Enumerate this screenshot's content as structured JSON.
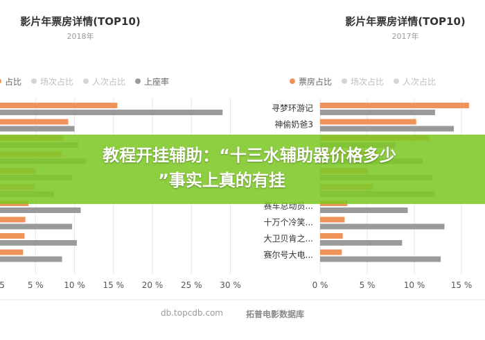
{
  "colors": {
    "box_office": "#f0935a",
    "screenings": "#b5b5b5",
    "admissions": "#c8c8c8",
    "occupancy": "#9a9a9a",
    "banner": "#7ec828"
  },
  "banner": {
    "line1": "教程开挂辅助：“十三水辅助器价格多少",
    "line2": "”事实上真的有挂"
  },
  "footer": {
    "source": "db.topcdb.com",
    "brand": "拓普电影数据库"
  },
  "chart_data": [
    {
      "type": "bar",
      "orientation": "horizontal",
      "title": "影片年票房详情(TOP10)",
      "subtitle": "2018年",
      "legend": [
        "占比",
        "场次占比",
        "人次占比",
        "上座率"
      ],
      "legend_placement": "top",
      "categories": [
        "",
        "",
        "",
        "",
        "",
        "",
        "",
        "",
        "",
        ""
      ],
      "series": [
        {
          "name": "票房占比",
          "values": [
            15.5,
            9.2,
            8.6,
            8.4,
            5.0,
            4.9,
            4.1,
            3.7,
            3.6,
            3.4
          ]
        },
        {
          "name": "上座率",
          "values": [
            29.0,
            10.0,
            10.5,
            11.5,
            9.7,
            7.4,
            10.8,
            9.7,
            10.3,
            8.4
          ]
        }
      ],
      "xticks": [
        "5 %",
        "10 %",
        "15 %",
        "20 %",
        "25 %",
        "30 %"
      ],
      "xlim": [
        0,
        31
      ],
      "grid": true
    },
    {
      "type": "bar",
      "orientation": "horizontal",
      "title": "影片年票房详情(TOP10)",
      "subtitle": "2017年",
      "legend": [
        "票房占比",
        "场次占比",
        "人次占比",
        "上座率"
      ],
      "legend_placement": "top",
      "categories": [
        "寻梦环游记",
        "神偷奶爸3",
        "",
        "",
        "",
        "",
        "赛车总动员...",
        "十万个冷笑...",
        "大卫贝肯之...",
        "赛尔号大电..."
      ],
      "series": [
        {
          "name": "票房占比",
          "values": [
            15.8,
            10.2,
            11.6,
            6.2,
            5.1,
            5.6,
            2.9,
            2.6,
            2.4,
            2.3
          ]
        },
        {
          "name": "上座率",
          "values": [
            12.2,
            14.2,
            8.0,
            10.9,
            11.9,
            12.2,
            9.3,
            13.2,
            8.7,
            12.8
          ]
        }
      ],
      "xticks": [
        "0 %",
        "5 %",
        "10 %",
        "15 %"
      ],
      "xlim": [
        0,
        16
      ],
      "grid": true
    }
  ]
}
